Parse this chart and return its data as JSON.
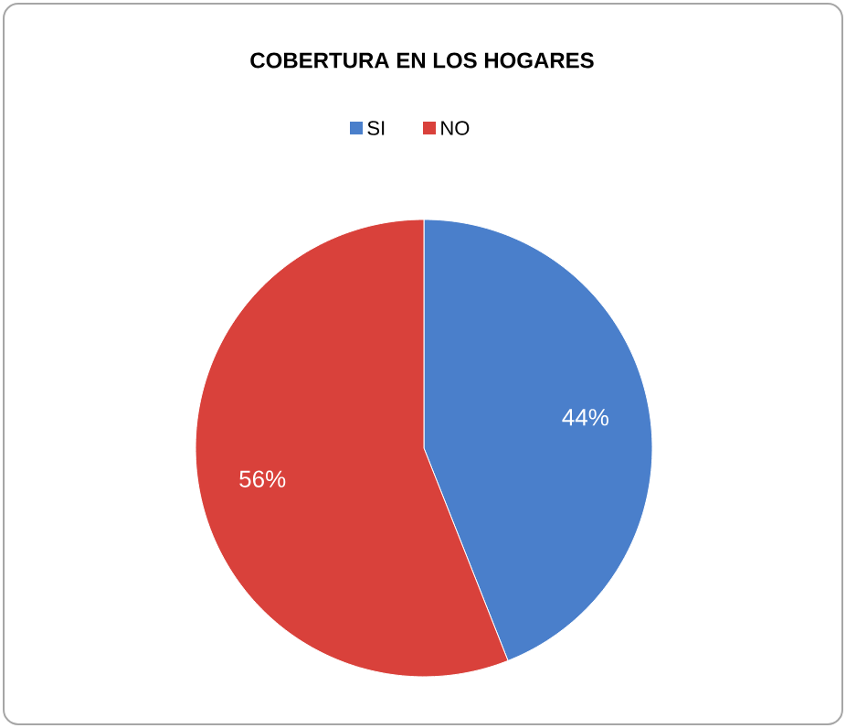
{
  "chart_data": {
    "type": "pie",
    "title": "COBERTURA EN LOS HOGARES",
    "categories": [
      "SI",
      "NO"
    ],
    "values": [
      44,
      56
    ],
    "colors": [
      "#4a7fcb",
      "#d9413b"
    ],
    "value_labels": [
      "44%",
      "56%"
    ],
    "legend": "top"
  }
}
